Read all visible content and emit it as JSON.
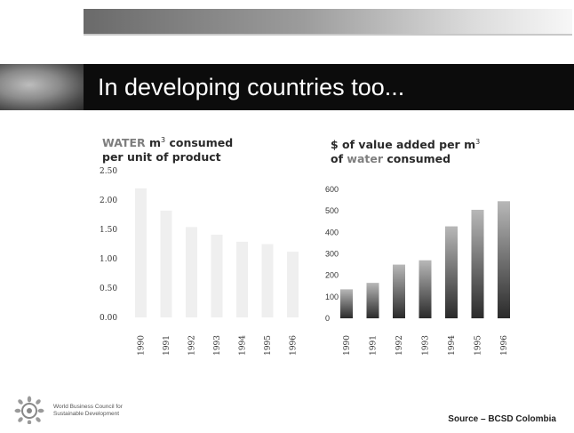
{
  "slide": {
    "title": "In developing countries too...",
    "source": "Source – BCSD Colombia",
    "org_line1": "World Business Council for",
    "org_line2": "Sustainable Development"
  },
  "chart_data": [
    {
      "type": "bar",
      "title_part1": "WATER",
      "title_part2": " m",
      "title_sup": "3",
      "title_part3": " consumed",
      "title_line2": "per unit of product",
      "categories": [
        "1990",
        "1991",
        "1992",
        "1993",
        "1994",
        "1995",
        "1996"
      ],
      "values": [
        2.2,
        1.82,
        1.54,
        1.41,
        1.29,
        1.25,
        1.12
      ],
      "yticks": [
        "0.00",
        "0.50",
        "1.00",
        "1.50",
        "2.00",
        "2.50"
      ],
      "ylim": [
        0,
        2.5
      ],
      "color": "#efefef"
    },
    {
      "type": "bar",
      "title_part1": "$ of value added per m",
      "title_sup": "3",
      "title_line2a": "of ",
      "title_line2b": "water",
      "title_line2c": " consumed",
      "categories": [
        "1990",
        "1991",
        "1992",
        "1993",
        "1994",
        "1995",
        "1996"
      ],
      "values": [
        135,
        165,
        250,
        270,
        428,
        505,
        545
      ],
      "yticks": [
        "0",
        "100",
        "200",
        "300",
        "400",
        "500",
        "600"
      ],
      "ylim": [
        0,
        600
      ],
      "gradient_top": "#b8b8b8",
      "gradient_bottom": "#2a2a2a"
    }
  ]
}
